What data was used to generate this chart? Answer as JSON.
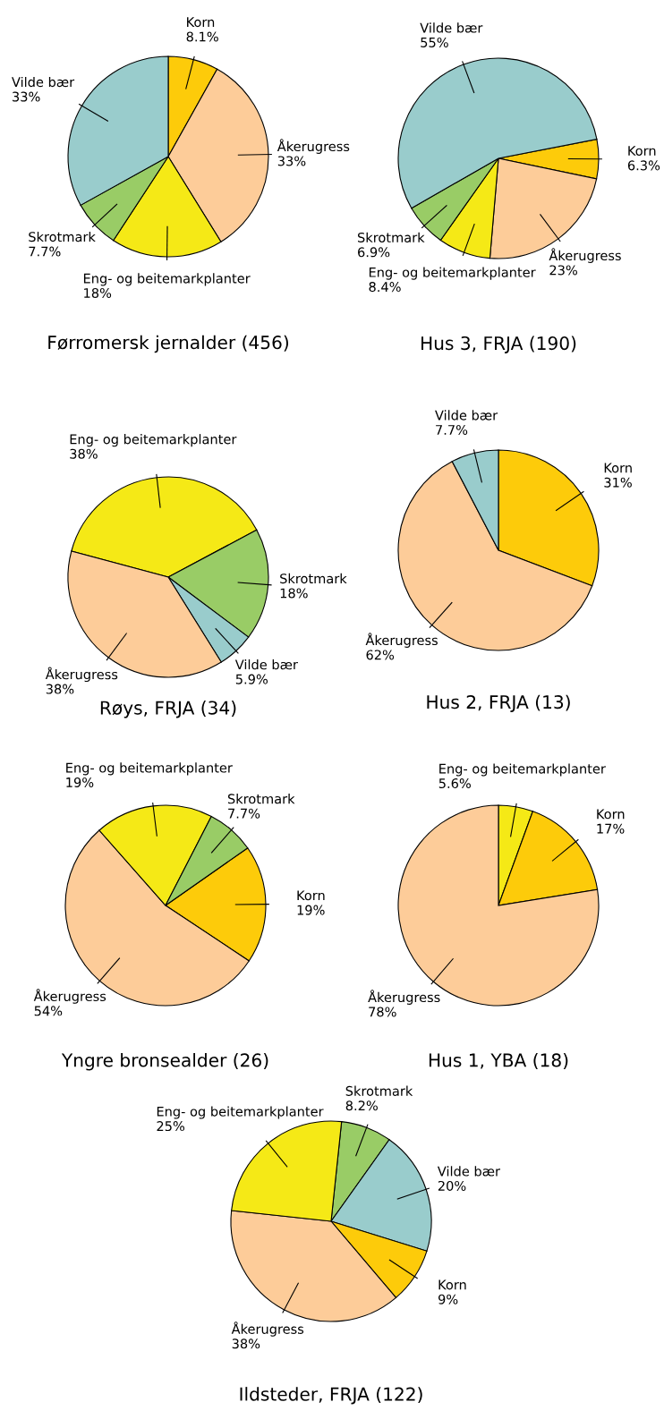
{
  "chart_data": [
    {
      "type": "pie",
      "title": "Førromersk jernalder (456)",
      "categories": [
        "Korn",
        "Åkerugress",
        "Eng- og beitemarkplanter",
        "Skrotmark",
        "Vilde bær"
      ],
      "values": [
        8.1,
        33,
        18,
        7.7,
        33
      ],
      "value_labels": [
        "8.1%",
        "33%",
        "18%",
        "7.7%",
        "33%"
      ],
      "colors": [
        "#fdcb0a",
        "#fdcc99",
        "#f5e916",
        "#99cc66",
        "#99cccc"
      ]
    },
    {
      "type": "pie",
      "title": "Hus 3, FRJA (190)",
      "categories": [
        "Korn",
        "Åkerugress",
        "Eng- og beitemarkplanter",
        "Skrotmark",
        "Vilde bær"
      ],
      "values": [
        6.3,
        23,
        8.4,
        6.9,
        55
      ],
      "value_labels": [
        "6.3%",
        "23%",
        "8.4%",
        "6.9%",
        "55%"
      ],
      "colors": [
        "#fdcb0a",
        "#fdcc99",
        "#f5e916",
        "#99cc66",
        "#99cccc"
      ]
    },
    {
      "type": "pie",
      "title": "Røys, FRJA (34)",
      "categories": [
        "Eng- og beitemarkplanter",
        "Skrotmark",
        "Vilde bær",
        "Åkerugress"
      ],
      "values": [
        38,
        18,
        5.9,
        38
      ],
      "value_labels": [
        "38%",
        "18%",
        "5.9%",
        "38%"
      ],
      "colors": [
        "#f5e916",
        "#99cc66",
        "#99cccc",
        "#fdcc99"
      ]
    },
    {
      "type": "pie",
      "title": "Hus 2, FRJA (13)",
      "categories": [
        "Korn",
        "Åkerugress",
        "Vilde bær"
      ],
      "values": [
        31,
        62,
        7.7
      ],
      "value_labels": [
        "31%",
        "62%",
        "7.7%"
      ],
      "colors": [
        "#fdcb0a",
        "#fdcc99",
        "#99cccc"
      ]
    },
    {
      "type": "pie",
      "title": "Yngre bronsealder (26)",
      "categories": [
        "Korn",
        "Åkerugress",
        "Eng- og beitemarkplanter",
        "Skrotmark"
      ],
      "values": [
        19,
        54,
        19,
        7.7
      ],
      "value_labels": [
        "19%",
        "54%",
        "19%",
        "7.7%"
      ],
      "colors": [
        "#fdcb0a",
        "#fdcc99",
        "#f5e916",
        "#99cc66"
      ]
    },
    {
      "type": "pie",
      "title": "Hus 1, YBA (18)",
      "categories": [
        "Eng- og beitemarkplanter",
        "Korn",
        "Åkerugress"
      ],
      "values": [
        5.6,
        17,
        78
      ],
      "value_labels": [
        "5.6%",
        "17%",
        "78%"
      ],
      "colors": [
        "#f5e916",
        "#fdcb0a",
        "#fdcc99"
      ]
    },
    {
      "type": "pie",
      "title": "Ildsteder, FRJA (122)",
      "categories": [
        "Skrotmark",
        "Vilde bær",
        "Korn",
        "Åkerugress",
        "Eng- og beitemarkplanter"
      ],
      "values": [
        8.2,
        20,
        9,
        38,
        25
      ],
      "value_labels": [
        "8.2%",
        "20%",
        "9%",
        "38%",
        "25%"
      ],
      "colors": [
        "#99cc66",
        "#99cccc",
        "#fdcb0a",
        "#fdcc99",
        "#f5e916"
      ]
    }
  ]
}
